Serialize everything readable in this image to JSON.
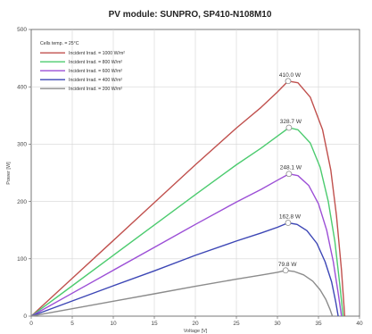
{
  "chart_data": {
    "type": "line",
    "title": "PV module:  SUNPRO,  SP410-N108M10",
    "xlabel": "Voltage [V]",
    "ylabel": "Power [W]",
    "xlim": [
      0,
      40
    ],
    "ylim": [
      0,
      500
    ],
    "x_ticks": [
      "0",
      "5",
      "10",
      "15",
      "20",
      "25",
      "30",
      "35",
      "40"
    ],
    "y_ticks": [
      "0",
      "100",
      "200",
      "300",
      "400",
      "500"
    ],
    "grid": true,
    "legend_position": "top-left",
    "legend_header": "Cells temp. = 25°C",
    "series": [
      {
        "name": "Incident Irrad. = 1000 W/m²",
        "color": "#c0504d",
        "peak_label": "410.0 W",
        "peak": [
          31.3,
          410.0
        ],
        "x": [
          0,
          1,
          5,
          10,
          15,
          20,
          25,
          28,
          30,
          31.3,
          32.5,
          34,
          35.5,
          36.5,
          37.2,
          37.8,
          38.2
        ],
        "y": [
          0,
          13.2,
          66,
          132,
          198,
          264,
          328,
          364,
          391,
          410,
          407,
          382,
          325,
          255,
          175,
          80,
          0
        ]
      },
      {
        "name": "Incident Irrad. = 800 W/m²",
        "color": "#4ccb6f",
        "peak_label": "328.7 W",
        "peak": [
          31.4,
          328.7
        ],
        "x": [
          0,
          1,
          5,
          10,
          15,
          20,
          25,
          28,
          30,
          31.4,
          32.5,
          34,
          35.2,
          36.2,
          37.0,
          37.6,
          38.0
        ],
        "y": [
          0,
          10.6,
          53,
          106,
          159,
          212,
          264,
          293,
          314,
          328.7,
          325,
          302,
          260,
          200,
          130,
          55,
          0
        ]
      },
      {
        "name": "Incident Irrad. = 600 W/m²",
        "color": "#9c4fd6",
        "peak_label": "248.1 W",
        "peak": [
          31.4,
          248.1
        ],
        "x": [
          0,
          1,
          5,
          10,
          15,
          20,
          25,
          28,
          30,
          31.4,
          32.5,
          33.8,
          35.0,
          36.0,
          36.8,
          37.4,
          37.8
        ],
        "y": [
          0,
          8,
          40,
          80,
          120,
          160,
          199,
          221,
          237,
          248.1,
          245,
          228,
          196,
          150,
          95,
          40,
          0
        ]
      },
      {
        "name": "Incident Irrad. = 400 W/m²",
        "color": "#3c46b5",
        "peak_label": "162.8 W",
        "peak": [
          31.3,
          162.8
        ],
        "x": [
          0,
          1,
          5,
          10,
          15,
          20,
          25,
          28,
          30,
          31.3,
          32.4,
          33.6,
          34.8,
          35.8,
          36.6,
          37.1,
          37.4
        ],
        "y": [
          0,
          5.3,
          26.5,
          53,
          79,
          106,
          131,
          145,
          155,
          162.8,
          160,
          149,
          127,
          95,
          60,
          25,
          0
        ]
      },
      {
        "name": "Incident Irrad. = 200 W/m²",
        "color": "#8c8c8c",
        "peak_label": "79.8 W",
        "peak": [
          31.0,
          79.8
        ],
        "x": [
          0,
          1,
          5,
          10,
          15,
          20,
          25,
          28,
          30,
          31.0,
          32.0,
          33.2,
          34.3,
          35.2,
          35.9,
          36.4,
          36.7
        ],
        "y": [
          0,
          2.6,
          13,
          26,
          39,
          52,
          64.5,
          71.5,
          76.5,
          79.8,
          78,
          72,
          61,
          46,
          29,
          12,
          0
        ]
      }
    ]
  }
}
